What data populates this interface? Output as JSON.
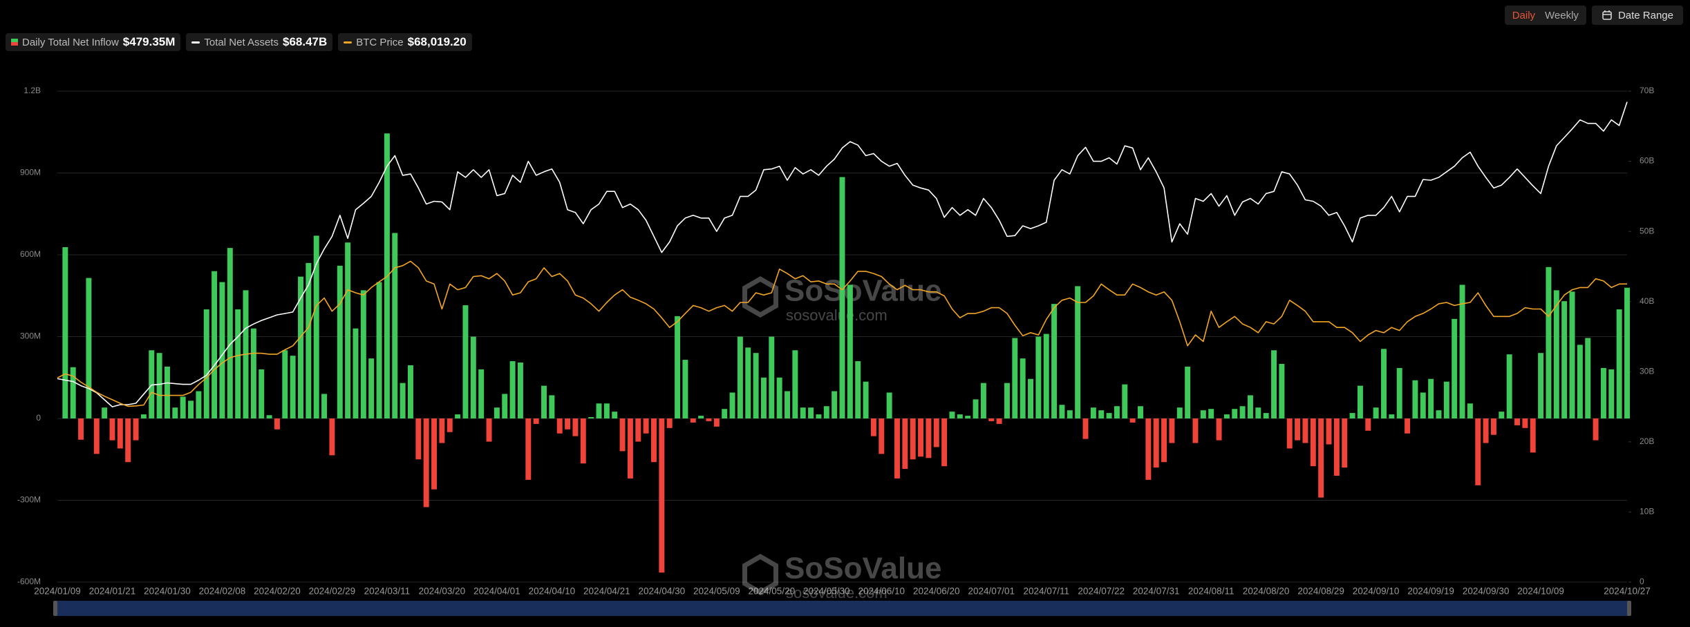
{
  "chart_data": {
    "type": "bar",
    "controls": [
      "Daily",
      "Weekly",
      "Date Range"
    ],
    "watermark": "SoSoValue",
    "watermark_url": "sosovalue.com",
    "categories": [
      "2024/01/09",
      null,
      null,
      null,
      null,
      null,
      null,
      "2024/01/21",
      null,
      null,
      null,
      null,
      null,
      null,
      "2024/01/30",
      null,
      null,
      null,
      null,
      null,
      null,
      "2024/02/08",
      null,
      null,
      null,
      null,
      null,
      null,
      "2024/02/20",
      null,
      null,
      null,
      null,
      null,
      null,
      "2024/02/29",
      null,
      null,
      null,
      null,
      null,
      null,
      "2024/03/11",
      null,
      null,
      null,
      null,
      null,
      null,
      "2024/03/20",
      null,
      null,
      null,
      null,
      null,
      null,
      "2024/04/01",
      null,
      null,
      null,
      null,
      null,
      null,
      "2024/04/10",
      null,
      null,
      null,
      null,
      null,
      null,
      "2024/04/21",
      null,
      null,
      null,
      null,
      null,
      null,
      "2024/04/30",
      null,
      null,
      null,
      null,
      null,
      null,
      "2024/05/09",
      null,
      null,
      null,
      null,
      null,
      null,
      "2024/05/20",
      null,
      null,
      null,
      null,
      null,
      null,
      "2024/05/30",
      null,
      null,
      null,
      null,
      null,
      null,
      "2024/06/10",
      null,
      null,
      null,
      null,
      null,
      null,
      "2024/06/20",
      null,
      null,
      null,
      null,
      null,
      null,
      "2024/07/01",
      null,
      null,
      null,
      null,
      null,
      null,
      "2024/07/11",
      null,
      null,
      null,
      null,
      null,
      null,
      "2024/07/22",
      null,
      null,
      null,
      null,
      null,
      null,
      "2024/07/31",
      null,
      null,
      null,
      null,
      null,
      null,
      "2024/08/11",
      null,
      null,
      null,
      null,
      null,
      null,
      "2024/08/20",
      null,
      null,
      null,
      null,
      null,
      null,
      "2024/08/29",
      null,
      null,
      null,
      null,
      null,
      null,
      "2024/09/10",
      null,
      null,
      null,
      null,
      null,
      null,
      "2024/09/19",
      null,
      null,
      null,
      null,
      null,
      null,
      "2024/09/30",
      null,
      null,
      null,
      null,
      null,
      null,
      "2024/10/09",
      null,
      null,
      null,
      null,
      null,
      null,
      null,
      null,
      null,
      null,
      "2024/10/27"
    ],
    "series": [
      {
        "name": "Daily Total Net Inflow",
        "type": "bar",
        "color": "#3ec95a",
        "negative_color": "#f0433a",
        "latest_label": "$479.35M",
        "values": [
          null,
          628,
          188,
          -78,
          515,
          -130,
          40,
          -80,
          -110,
          -160,
          -80,
          15,
          250,
          240,
          190,
          40,
          80,
          65,
          100,
          400,
          540,
          500,
          625,
          400,
          470,
          330,
          180,
          12,
          -40,
          250,
          230,
          520,
          570,
          670,
          90,
          -135,
          560,
          645,
          330,
          470,
          220,
          500,
          1045,
          680,
          130,
          195,
          -150,
          -325,
          -260,
          -90,
          -50,
          15,
          415,
          300,
          180,
          -85,
          40,
          90,
          210,
          205,
          -225,
          -20,
          120,
          85,
          -55,
          -40,
          -65,
          -165,
          5,
          55,
          55,
          25,
          -120,
          -220,
          -85,
          -55,
          -160,
          -565,
          -35,
          375,
          215,
          -15,
          10,
          -10,
          -30,
          35,
          95,
          300,
          260,
          240,
          150,
          300,
          150,
          100,
          250,
          40,
          40,
          15,
          45,
          100,
          885,
          490,
          210,
          135,
          -65,
          -130,
          95,
          -220,
          -185,
          -150,
          -140,
          -145,
          -105,
          -175,
          25,
          15,
          10,
          70,
          130,
          -10,
          -20,
          130,
          295,
          220,
          145,
          300,
          310,
          420,
          50,
          30,
          485,
          -75,
          40,
          30,
          20,
          45,
          125,
          -15,
          45,
          -225,
          -180,
          -160,
          -90,
          40,
          190,
          -90,
          30,
          35,
          -80,
          15,
          35,
          45,
          85,
          40,
          20,
          250,
          200,
          -110,
          -80,
          -90,
          -175,
          -290,
          -95,
          -210,
          -180,
          20,
          120,
          -45,
          40,
          255,
          15,
          185,
          -55,
          140,
          95,
          145,
          30,
          135,
          365,
          490,
          55,
          -245,
          -90,
          -60,
          25,
          235,
          -25,
          -35,
          -125,
          240,
          555,
          470,
          430,
          465,
          270,
          295,
          -80,
          185,
          180,
          400,
          479.35
        ]
      },
      {
        "name": "Total Net Assets",
        "type": "line",
        "axis": "y2",
        "color": "#ffffff",
        "latest_label": "$68.47B",
        "values": [
          29.0,
          28.8,
          28.6,
          28.0,
          27.6,
          27.0,
          26.0,
          25.0,
          25.3,
          25.3,
          25.5,
          26.8,
          28.1,
          28.2,
          28.4,
          28.3,
          28.2,
          28.2,
          28.8,
          29.5,
          30.9,
          32.4,
          33.9,
          35.0,
          36.2,
          36.8,
          37.3,
          37.7,
          38.1,
          38.3,
          38.5,
          40.5,
          42.4,
          45.4,
          47.5,
          49.3,
          52.3,
          49.0,
          53.1,
          54.0,
          55.0,
          57.0,
          59.3,
          60.8,
          58.0,
          58.2,
          56.2,
          53.9,
          54.3,
          54.2,
          53.1,
          58.5,
          57.7,
          58.8,
          57.7,
          58.8,
          55.1,
          55.4,
          58.0,
          57.0,
          60.0,
          58.0,
          58.5,
          58.9,
          57.0,
          53.1,
          52.7,
          51.1,
          53.1,
          53.9,
          55.7,
          55.7,
          53.4,
          53.9,
          53.1,
          51.6,
          49.3,
          47.0,
          48.5,
          50.8,
          51.9,
          52.3,
          51.9,
          51.9,
          50.0,
          51.9,
          52.3,
          55.0,
          55.0,
          55.9,
          58.8,
          58.9,
          59.3,
          57.3,
          59.1,
          58.2,
          58.8,
          58.0,
          59.3,
          60.3,
          61.9,
          62.8,
          62.3,
          60.8,
          61.1,
          60.0,
          59.3,
          59.7,
          58.0,
          56.6,
          56.2,
          55.9,
          54.7,
          52.0,
          53.4,
          52.3,
          53.1,
          52.3,
          54.7,
          53.4,
          51.6,
          49.3,
          49.4,
          50.8,
          50.4,
          50.8,
          51.3,
          57.3,
          58.8,
          58.2,
          60.8,
          62.0,
          60.0,
          60.0,
          60.5,
          59.6,
          62.2,
          61.9,
          58.8,
          60.5,
          58.5,
          56.2,
          48.5,
          51.1,
          49.6,
          54.7,
          54.3,
          55.4,
          53.6,
          55.1,
          52.3,
          54.2,
          54.7,
          53.9,
          55.4,
          55.7,
          58.5,
          58.2,
          56.6,
          54.5,
          54.3,
          53.6,
          52.3,
          52.7,
          50.8,
          48.5,
          51.9,
          52.3,
          52.3,
          53.4,
          55.0,
          52.8,
          55.0,
          55.0,
          57.4,
          57.3,
          57.7,
          58.5,
          59.3,
          60.5,
          61.3,
          59.3,
          57.7,
          56.2,
          56.6,
          57.7,
          58.9,
          57.7,
          56.5,
          55.4,
          59.3,
          62.2,
          63.4,
          64.6,
          65.9,
          65.4,
          65.4,
          64.3,
          65.9,
          65.1,
          68.47
        ]
      },
      {
        "name": "BTC Price",
        "type": "line",
        "axis": "y3",
        "color": "#f5a623",
        "latest_label": "$68,019.20",
        "values": [
          46600,
          47500,
          47000,
          45600,
          44500,
          43300,
          42400,
          41600,
          40800,
          40100,
          40200,
          40400,
          43300,
          42600,
          42600,
          42600,
          42600,
          43300,
          45100,
          46600,
          48500,
          50000,
          51200,
          51700,
          52000,
          52200,
          52200,
          52000,
          52000,
          53000,
          53900,
          56000,
          58100,
          63100,
          64800,
          61800,
          63500,
          66700,
          66000,
          65500,
          67200,
          68500,
          69700,
          71700,
          72200,
          73200,
          71700,
          68700,
          68000,
          62300,
          68000,
          66700,
          67200,
          69700,
          69900,
          69200,
          70400,
          68700,
          65500,
          66000,
          68500,
          69200,
          71700,
          69700,
          70400,
          68700,
          65500,
          64800,
          63500,
          61800,
          63800,
          65500,
          66700,
          65000,
          64300,
          63500,
          62300,
          60300,
          58100,
          59400,
          61300,
          63100,
          62600,
          61800,
          62600,
          63100,
          61800,
          63800,
          63800,
          66000,
          65500,
          66000,
          71400,
          70400,
          69200,
          69900,
          68500,
          68700,
          68000,
          68000,
          66700,
          68700,
          70900,
          70900,
          70400,
          69700,
          68000,
          66700,
          67700,
          66700,
          66700,
          66200,
          66200,
          65300,
          62300,
          60300,
          61300,
          61300,
          61800,
          62600,
          62600,
          61300,
          58600,
          56200,
          56900,
          56400,
          59900,
          62600,
          64300,
          64800,
          63800,
          63800,
          65300,
          68000,
          66700,
          65500,
          65500,
          68000,
          67200,
          66200,
          65500,
          66200,
          64300,
          59400,
          53900,
          56400,
          54900,
          61800,
          58100,
          59400,
          60600,
          58900,
          58100,
          56900,
          59400,
          58900,
          60600,
          64300,
          63100,
          61800,
          59400,
          59400,
          59400,
          58100,
          58100,
          56900,
          54900,
          56400,
          57400,
          56900,
          58100,
          57400,
          59400,
          60600,
          61300,
          62300,
          63500,
          63800,
          63100,
          63500,
          63800,
          66000,
          63100,
          60600,
          60600,
          60600,
          61300,
          62600,
          62300,
          62300,
          60600,
          63100,
          65500,
          66700,
          67200,
          67200,
          69200,
          68700,
          67200,
          68000,
          68019.2
        ]
      }
    ],
    "ylim": [
      -600,
      1200
    ],
    "yticks": [
      {
        "value": -600,
        "label": "-600M"
      },
      {
        "value": -300,
        "label": "-300M"
      },
      0,
      {
        "value": 300,
        "label": "300M"
      },
      {
        "value": 600,
        "label": "600M"
      },
      {
        "value": 900,
        "label": "900M"
      },
      {
        "value": 1200,
        "label": "1.2B"
      }
    ],
    "y2lim": [
      0,
      70
    ],
    "y2ticks": [
      0,
      {
        "value": 10,
        "label": "10B"
      },
      {
        "value": 20,
        "label": "20B"
      },
      {
        "value": 30,
        "label": "30B"
      },
      {
        "value": 40,
        "label": "40B"
      },
      {
        "value": 50,
        "label": "50B"
      },
      {
        "value": 60,
        "label": "60B"
      },
      {
        "value": 70,
        "label": "70B"
      }
    ],
    "y3lim": [
      0,
      112000
    ],
    "grid": true
  }
}
